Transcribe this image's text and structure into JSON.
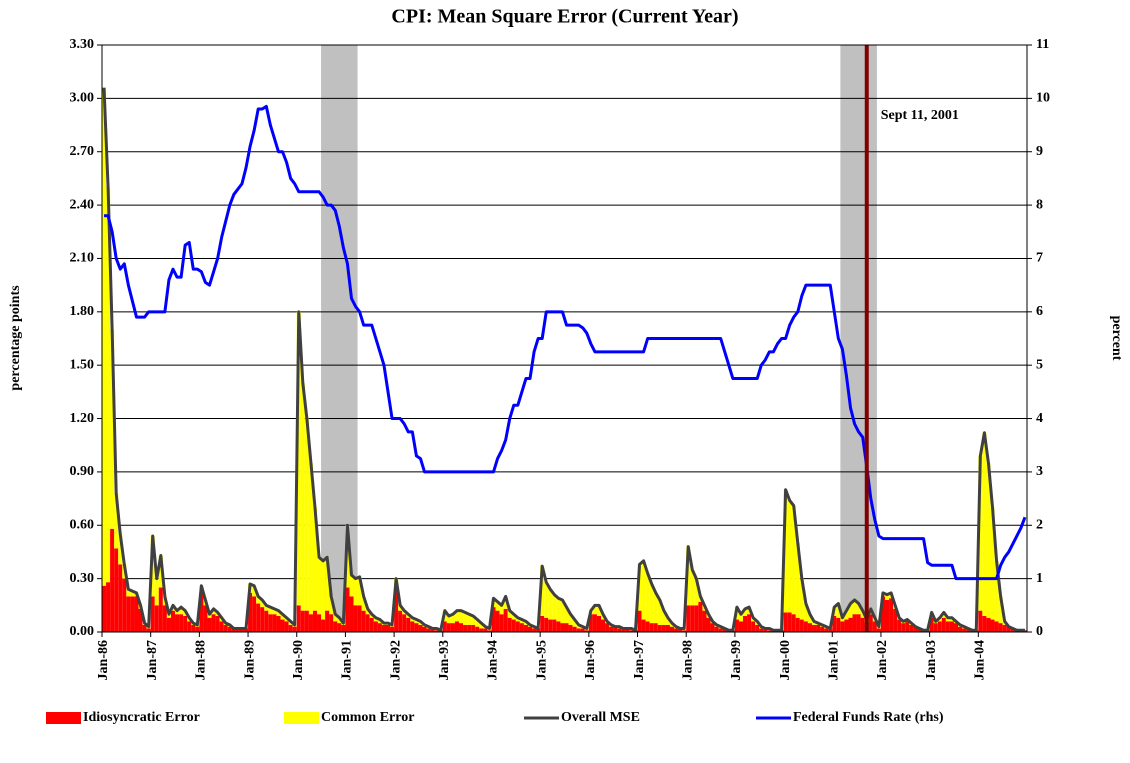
{
  "chart_data": {
    "type": "bar",
    "title": "CPI: Mean Square Error (Current Year)",
    "ylabel": "percentage points",
    "y2label": "percent",
    "categories": [
      "Jan-86",
      null,
      null,
      null,
      null,
      null,
      null,
      null,
      null,
      null,
      null,
      null,
      "Jan-87",
      null,
      null,
      null,
      null,
      null,
      null,
      null,
      null,
      null,
      null,
      null,
      "Jan-88",
      null,
      null,
      null,
      null,
      null,
      null,
      null,
      null,
      null,
      null,
      null,
      "Jan-89",
      null,
      null,
      null,
      null,
      null,
      null,
      null,
      null,
      null,
      null,
      null,
      "Jan-90",
      null,
      null,
      null,
      null,
      null,
      null,
      null,
      null,
      null,
      null,
      null,
      "Jan-91",
      null,
      null,
      null,
      null,
      null,
      null,
      null,
      null,
      null,
      null,
      null,
      "Jan-92",
      null,
      null,
      null,
      null,
      null,
      null,
      null,
      null,
      null,
      null,
      null,
      "Jan-93",
      null,
      null,
      null,
      null,
      null,
      null,
      null,
      null,
      null,
      null,
      null,
      "Jan-94",
      null,
      null,
      null,
      null,
      null,
      null,
      null,
      null,
      null,
      null,
      null,
      "Jan-95",
      null,
      null,
      null,
      null,
      null,
      null,
      null,
      null,
      null,
      null,
      null,
      "Jan-96",
      null,
      null,
      null,
      null,
      null,
      null,
      null,
      null,
      null,
      null,
      null,
      "Jan-97",
      null,
      null,
      null,
      null,
      null,
      null,
      null,
      null,
      null,
      null,
      null,
      "Jan-98",
      null,
      null,
      null,
      null,
      null,
      null,
      null,
      null,
      null,
      null,
      null,
      "Jan-99",
      null,
      null,
      null,
      null,
      null,
      null,
      null,
      null,
      null,
      null,
      null,
      "Jan-00",
      null,
      null,
      null,
      null,
      null,
      null,
      null,
      null,
      null,
      null,
      null,
      "Jan-01",
      null,
      null,
      null,
      null,
      null,
      null,
      null,
      null,
      null,
      null,
      null,
      "Jan-02",
      null,
      null,
      null,
      null,
      null,
      null,
      null,
      null,
      null,
      null,
      null,
      "Jan-03",
      null,
      null,
      null,
      null,
      null,
      null,
      null,
      null,
      null,
      null,
      null,
      "Jan-04",
      null,
      null,
      null,
      null,
      null,
      null,
      null,
      null,
      null,
      null,
      null
    ],
    "series": [
      {
        "name": "Idiosyncratic Error",
        "color": "#ff0000",
        "kind": "stack",
        "values": [
          0.26,
          0.28,
          0.58,
          0.47,
          0.38,
          0.3,
          0.2,
          0.2,
          0.2,
          0.13,
          0.04,
          0.02,
          0.2,
          0.15,
          0.25,
          0.15,
          0.08,
          0.12,
          0.1,
          0.1,
          0.09,
          0.06,
          0.04,
          0.03,
          0.22,
          0.15,
          0.08,
          0.1,
          0.09,
          0.06,
          0.04,
          0.03,
          0.02,
          0.02,
          0.02,
          0.02,
          0.22,
          0.2,
          0.16,
          0.14,
          0.12,
          0.1,
          0.1,
          0.09,
          0.07,
          0.06,
          0.04,
          0.03,
          0.15,
          0.12,
          0.12,
          0.1,
          0.12,
          0.1,
          0.07,
          0.12,
          0.1,
          0.06,
          0.05,
          0.04,
          0.25,
          0.2,
          0.15,
          0.15,
          0.12,
          0.1,
          0.08,
          0.06,
          0.05,
          0.04,
          0.04,
          0.03,
          0.25,
          0.12,
          0.1,
          0.08,
          0.06,
          0.05,
          0.04,
          0.03,
          0.02,
          0.02,
          0.01,
          0.01,
          0.06,
          0.05,
          0.05,
          0.06,
          0.05,
          0.04,
          0.04,
          0.04,
          0.03,
          0.02,
          0.02,
          0.01,
          0.14,
          0.12,
          0.1,
          0.13,
          0.08,
          0.07,
          0.06,
          0.05,
          0.04,
          0.03,
          0.02,
          0.02,
          0.09,
          0.08,
          0.07,
          0.07,
          0.06,
          0.05,
          0.05,
          0.04,
          0.03,
          0.02,
          0.02,
          0.01,
          0.1,
          0.1,
          0.09,
          0.07,
          0.05,
          0.03,
          0.03,
          0.02,
          0.02,
          0.02,
          0.01,
          0.01,
          0.12,
          0.07,
          0.06,
          0.05,
          0.05,
          0.04,
          0.04,
          0.04,
          0.03,
          0.02,
          0.02,
          0.01,
          0.15,
          0.15,
          0.15,
          0.17,
          0.12,
          0.08,
          0.05,
          0.03,
          0.02,
          0.02,
          0.01,
          0.01,
          0.07,
          0.06,
          0.09,
          0.1,
          0.06,
          0.04,
          0.02,
          0.02,
          0.01,
          0.01,
          0.01,
          0.01,
          0.11,
          0.11,
          0.1,
          0.08,
          0.07,
          0.06,
          0.05,
          0.04,
          0.04,
          0.03,
          0.02,
          0.02,
          0.09,
          0.08,
          0.06,
          0.07,
          0.08,
          0.1,
          0.1,
          0.08,
          0.05,
          0.1,
          0.06,
          0.02,
          0.2,
          0.18,
          0.19,
          0.13,
          0.07,
          0.05,
          0.06,
          0.04,
          0.03,
          0.02,
          0.01,
          0.01,
          0.08,
          0.05,
          0.06,
          0.08,
          0.06,
          0.06,
          0.05,
          0.03,
          0.02,
          0.02,
          0.01,
          0.01,
          0.12,
          0.09,
          0.08,
          0.07,
          0.06,
          0.05,
          0.04,
          0.03,
          0.02,
          0.01,
          0.01,
          0.01
        ]
      },
      {
        "name": "Common Error",
        "color": "#ffff00",
        "kind": "stack",
        "values": [
          2.8,
          2.22,
          1.12,
          0.31,
          0.17,
          0.08,
          0.04,
          0.03,
          0.02,
          0.02,
          0.01,
          0.01,
          0.34,
          0.15,
          0.18,
          0.05,
          0.02,
          0.03,
          0.02,
          0.04,
          0.03,
          0.02,
          0.01,
          0.01,
          0.04,
          0.03,
          0.02,
          0.03,
          0.02,
          0.02,
          0.01,
          0.01,
          0,
          0,
          0,
          0,
          0.05,
          0.06,
          0.04,
          0.04,
          0.03,
          0.04,
          0.03,
          0.03,
          0.03,
          0.02,
          0.02,
          0.01,
          1.65,
          1.28,
          1.08,
          0.85,
          0.58,
          0.32,
          0.33,
          0.3,
          0.1,
          0.04,
          0.03,
          0.01,
          0.35,
          0.12,
          0.15,
          0.16,
          0.08,
          0.03,
          0.02,
          0.02,
          0.02,
          0.01,
          0.01,
          0.01,
          0.05,
          0.03,
          0.02,
          0.02,
          0.02,
          0.02,
          0.02,
          0.01,
          0.01,
          0,
          0.01,
          0,
          0.06,
          0.04,
          0.05,
          0.06,
          0.07,
          0.07,
          0.06,
          0.05,
          0.04,
          0.03,
          0.01,
          0.01,
          0.05,
          0.05,
          0.05,
          0.07,
          0.04,
          0.03,
          0.02,
          0.02,
          0.02,
          0.01,
          0.01,
          0,
          0.28,
          0.2,
          0.17,
          0.14,
          0.13,
          0.13,
          0.09,
          0.06,
          0.04,
          0.02,
          0.01,
          0.01,
          0.02,
          0.05,
          0.06,
          0.03,
          0.01,
          0.01,
          0,
          0.01,
          0,
          0,
          0.01,
          0,
          0.26,
          0.33,
          0.27,
          0.22,
          0.17,
          0.14,
          0.08,
          0.04,
          0.02,
          0.01,
          0,
          0.01,
          0.33,
          0.2,
          0.15,
          0.03,
          0.03,
          0.02,
          0.01,
          0.01,
          0.01,
          0,
          0,
          0,
          0.07,
          0.04,
          0.04,
          0.04,
          0.02,
          0.02,
          0.01,
          0,
          0.01,
          0,
          0,
          0,
          0.69,
          0.63,
          0.61,
          0.42,
          0.23,
          0.1,
          0.05,
          0.02,
          0.01,
          0.01,
          0.01,
          0,
          0.05,
          0.08,
          0.02,
          0.05,
          0.08,
          0.08,
          0.06,
          0.04,
          0.02,
          0.03,
          0.02,
          0.01,
          0.02,
          0.03,
          0.03,
          0.02,
          0.01,
          0.01,
          0.01,
          0.01,
          0,
          0,
          0,
          0,
          0.03,
          0.01,
          0.02,
          0.03,
          0.02,
          0.02,
          0.01,
          0.01,
          0.01,
          0,
          0,
          0,
          0.87,
          1.03,
          0.87,
          0.63,
          0.34,
          0.15,
          0.02,
          0,
          0,
          0,
          0,
          0
        ]
      },
      {
        "name": "Overall MSE",
        "color": "#404040",
        "kind": "line",
        "values": [
          3.06,
          2.5,
          1.7,
          0.78,
          0.55,
          0.38,
          0.24,
          0.23,
          0.22,
          0.15,
          0.05,
          0.03,
          0.54,
          0.3,
          0.43,
          0.2,
          0.1,
          0.15,
          0.12,
          0.14,
          0.12,
          0.08,
          0.05,
          0.04,
          0.26,
          0.18,
          0.1,
          0.13,
          0.11,
          0.08,
          0.05,
          0.04,
          0.02,
          0.02,
          0.02,
          0.02,
          0.27,
          0.26,
          0.2,
          0.18,
          0.15,
          0.14,
          0.13,
          0.12,
          0.1,
          0.08,
          0.06,
          0.04,
          1.8,
          1.4,
          1.2,
          0.95,
          0.7,
          0.42,
          0.4,
          0.42,
          0.2,
          0.1,
          0.08,
          0.05,
          0.6,
          0.32,
          0.3,
          0.31,
          0.2,
          0.13,
          0.1,
          0.08,
          0.07,
          0.05,
          0.05,
          0.04,
          0.3,
          0.15,
          0.12,
          0.1,
          0.08,
          0.07,
          0.06,
          0.04,
          0.03,
          0.02,
          0.02,
          0.01,
          0.12,
          0.09,
          0.1,
          0.12,
          0.12,
          0.11,
          0.1,
          0.09,
          0.07,
          0.05,
          0.03,
          0.02,
          0.19,
          0.17,
          0.15,
          0.2,
          0.12,
          0.1,
          0.08,
          0.07,
          0.06,
          0.04,
          0.03,
          0.02,
          0.37,
          0.28,
          0.24,
          0.21,
          0.19,
          0.18,
          0.14,
          0.1,
          0.07,
          0.04,
          0.03,
          0.02,
          0.12,
          0.15,
          0.15,
          0.1,
          0.06,
          0.04,
          0.03,
          0.03,
          0.02,
          0.02,
          0.02,
          0.01,
          0.38,
          0.4,
          0.33,
          0.27,
          0.22,
          0.18,
          0.12,
          0.08,
          0.05,
          0.03,
          0.02,
          0.02,
          0.48,
          0.35,
          0.3,
          0.2,
          0.15,
          0.1,
          0.06,
          0.04,
          0.03,
          0.02,
          0.01,
          0.01,
          0.14,
          0.1,
          0.13,
          0.14,
          0.08,
          0.06,
          0.03,
          0.02,
          0.02,
          0.01,
          0.01,
          0.01,
          0.8,
          0.74,
          0.71,
          0.5,
          0.3,
          0.16,
          0.1,
          0.06,
          0.05,
          0.04,
          0.03,
          0.02,
          0.14,
          0.16,
          0.08,
          0.12,
          0.16,
          0.18,
          0.16,
          0.12,
          0.07,
          0.13,
          0.08,
          0.03,
          0.22,
          0.21,
          0.22,
          0.15,
          0.08,
          0.06,
          0.07,
          0.05,
          0.03,
          0.02,
          0.01,
          0.01,
          0.11,
          0.06,
          0.08,
          0.11,
          0.08,
          0.08,
          0.06,
          0.04,
          0.03,
          0.02,
          0.01,
          0.01,
          0.99,
          1.12,
          0.95,
          0.7,
          0.4,
          0.2,
          0.06,
          0.03,
          0.02,
          0.01,
          0.01,
          0.01
        ]
      },
      {
        "name": "Federal Funds Rate (rhs)",
        "color": "#0000ff",
        "kind": "line",
        "axis": "y2",
        "values": [
          7.8,
          7.8,
          7.5,
          7.0,
          6.8,
          6.9,
          6.5,
          6.2,
          5.9,
          5.9,
          5.9,
          6.0,
          6.0,
          6.0,
          6.0,
          6.0,
          6.6,
          6.8,
          6.65,
          6.65,
          7.25,
          7.3,
          6.8,
          6.8,
          6.75,
          6.55,
          6.5,
          6.75,
          7.0,
          7.4,
          7.7,
          8.0,
          8.2,
          8.3,
          8.4,
          8.7,
          9.1,
          9.4,
          9.8,
          9.8,
          9.85,
          9.5,
          9.25,
          9.0,
          9.0,
          8.8,
          8.5,
          8.4,
          8.25,
          8.25,
          8.25,
          8.25,
          8.25,
          8.25,
          8.15,
          8.0,
          8.0,
          7.9,
          7.6,
          7.2,
          6.9,
          6.25,
          6.1,
          6.0,
          5.75,
          5.75,
          5.75,
          5.5,
          5.25,
          5.0,
          4.5,
          4.0,
          4.0,
          4.0,
          3.9,
          3.75,
          3.75,
          3.3,
          3.25,
          3.0,
          3.0,
          3.0,
          3.0,
          3.0,
          3.0,
          3.0,
          3.0,
          3.0,
          3.0,
          3.0,
          3.0,
          3.0,
          3.0,
          3.0,
          3.0,
          3.0,
          3.0,
          3.25,
          3.4,
          3.6,
          4.0,
          4.25,
          4.25,
          4.5,
          4.75,
          4.75,
          5.25,
          5.5,
          5.5,
          6.0,
          6.0,
          6.0,
          6.0,
          6.0,
          5.75,
          5.75,
          5.75,
          5.75,
          5.7,
          5.6,
          5.4,
          5.25,
          5.25,
          5.25,
          5.25,
          5.25,
          5.25,
          5.25,
          5.25,
          5.25,
          5.25,
          5.25,
          5.25,
          5.25,
          5.5,
          5.5,
          5.5,
          5.5,
          5.5,
          5.5,
          5.5,
          5.5,
          5.5,
          5.5,
          5.5,
          5.5,
          5.5,
          5.5,
          5.5,
          5.5,
          5.5,
          5.5,
          5.5,
          5.25,
          5.0,
          4.75,
          4.75,
          4.75,
          4.75,
          4.75,
          4.75,
          4.75,
          5.0,
          5.1,
          5.25,
          5.25,
          5.4,
          5.5,
          5.5,
          5.75,
          5.9,
          6.0,
          6.3,
          6.5,
          6.5,
          6.5,
          6.5,
          6.5,
          6.5,
          6.5,
          6.0,
          5.5,
          5.3,
          4.8,
          4.2,
          3.9,
          3.75,
          3.65,
          3.1,
          2.5,
          2.1,
          1.8,
          1.75,
          1.75,
          1.75,
          1.75,
          1.75,
          1.75,
          1.75,
          1.75,
          1.75,
          1.75,
          1.75,
          1.3,
          1.25,
          1.25,
          1.25,
          1.25,
          1.25,
          1.25,
          1.0,
          1.0,
          1.0,
          1.0,
          1.0,
          1.0,
          1.0,
          1.0,
          1.0,
          1.0,
          1.0,
          1.25,
          1.4,
          1.5,
          1.65,
          1.8,
          1.95,
          2.15
        ]
      }
    ],
    "ylim": [
      0,
      3.3
    ],
    "yticks": [
      {
        "value": 0,
        "label": "0.00"
      },
      {
        "value": 0.3,
        "label": "0.30"
      },
      {
        "value": 0.6,
        "label": "0.60"
      },
      {
        "value": 0.9,
        "label": "0.90"
      },
      {
        "value": 1.2,
        "label": "1.20"
      },
      {
        "value": 1.5,
        "label": "1.50"
      },
      {
        "value": 1.8,
        "label": "1.80"
      },
      {
        "value": 2.1,
        "label": "2.10"
      },
      {
        "value": 2.4,
        "label": "2.40"
      },
      {
        "value": 2.7,
        "label": "2.70"
      },
      {
        "value": 3.0,
        "label": "3.00"
      },
      {
        "value": 3.3,
        "label": "3.30"
      }
    ],
    "y2lim": [
      0,
      11
    ],
    "y2ticks": [
      0,
      1,
      2,
      3,
      4,
      5,
      6,
      7,
      8,
      9,
      10,
      11
    ],
    "grid": true,
    "shaded_periods": [
      {
        "start": 54,
        "end": 62
      },
      {
        "start": 182,
        "end": 190
      }
    ],
    "event": {
      "text": "Sept 11, 2001",
      "index": 188,
      "color": "#800000"
    },
    "shade_color": "#c0c0c0",
    "legend": "bottom"
  }
}
